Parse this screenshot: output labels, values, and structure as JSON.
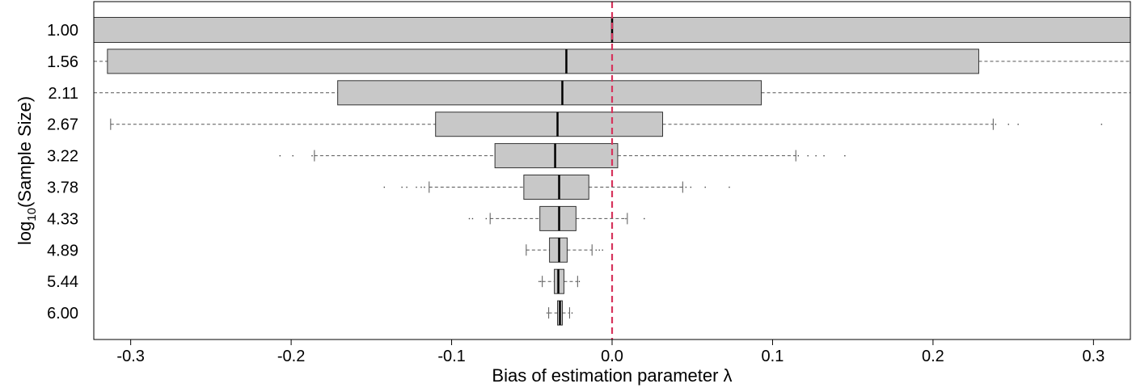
{
  "chart_data": {
    "type": "boxplot",
    "orientation": "horizontal",
    "title": "",
    "xlabel": "Bias of estimation parameter λ",
    "ylabel_main": "log",
    "ylabel_sub": "10",
    "ylabel_rest": "(Sample Size)",
    "xlim": [
      -0.323,
      0.323
    ],
    "x_ticks": [
      {
        "value": -0.3,
        "label": "-0.3"
      },
      {
        "value": -0.2,
        "label": "-0.2"
      },
      {
        "value": -0.1,
        "label": "-0.1"
      },
      {
        "value": 0.0,
        "label": "0.0"
      },
      {
        "value": 0.1,
        "label": "0.1"
      },
      {
        "value": 0.2,
        "label": "0.2"
      },
      {
        "value": 0.3,
        "label": "0.3"
      }
    ],
    "reference_line": {
      "value": 0.0,
      "color": "#d6335c",
      "style": "dashed"
    },
    "box_fill": "#c8c8c8",
    "categories": [
      {
        "label": "6.00",
        "q1": -0.034,
        "median": -0.0325,
        "q3": -0.031,
        "whisker_low": -0.0395,
        "whisker_high": -0.0265,
        "outliers": [
          -0.0405,
          -0.025
        ]
      },
      {
        "label": "5.44",
        "q1": -0.036,
        "median": -0.0335,
        "q3": -0.03,
        "whisker_low": -0.0435,
        "whisker_high": -0.0215,
        "outliers": [
          -0.0455,
          -0.0445,
          -0.0205
        ]
      },
      {
        "label": "4.89",
        "q1": -0.039,
        "median": -0.033,
        "q3": -0.028,
        "whisker_low": -0.0535,
        "whisker_high": -0.0125,
        "outliers": [
          -0.01,
          -0.008,
          -0.006
        ]
      },
      {
        "label": "4.33",
        "q1": -0.045,
        "median": -0.033,
        "q3": -0.0225,
        "whisker_low": -0.076,
        "whisker_high": 0.0095,
        "outliers": [
          -0.089,
          -0.087,
          -0.0785,
          0.0085,
          0.02
        ]
      },
      {
        "label": "3.78",
        "q1": -0.055,
        "median": -0.033,
        "q3": -0.0145,
        "whisker_low": -0.114,
        "whisker_high": 0.044,
        "outliers": [
          -0.142,
          -0.131,
          -0.128,
          -0.122,
          -0.119,
          -0.117,
          0.046,
          0.049,
          0.058,
          0.073
        ]
      },
      {
        "label": "3.22",
        "q1": -0.073,
        "median": -0.0355,
        "q3": 0.0035,
        "whisker_low": -0.1855,
        "whisker_high": 0.1145,
        "outliers": [
          -0.207,
          -0.199,
          -0.187,
          0.116,
          0.122,
          0.127,
          0.132,
          0.145
        ]
      },
      {
        "label": "2.67",
        "q1": -0.11,
        "median": -0.034,
        "q3": 0.0315,
        "whisker_low": -0.3125,
        "whisker_high": 0.2375,
        "outliers": [
          0.239,
          0.247,
          0.253,
          0.305
        ]
      },
      {
        "label": "2.11",
        "q1": -0.171,
        "median": -0.031,
        "q3": 0.093,
        "whisker_low": -0.323,
        "whisker_high": 0.323,
        "outliers": []
      },
      {
        "label": "1.56",
        "q1": -0.3145,
        "median": -0.0285,
        "q3": 0.2285,
        "whisker_low": -0.323,
        "whisker_high": 0.323,
        "outliers": []
      },
      {
        "label": "1.00",
        "q1": -0.323,
        "median": 0.0,
        "q3": 0.323,
        "whisker_low": -0.323,
        "whisker_high": 0.323,
        "outliers": []
      }
    ]
  }
}
